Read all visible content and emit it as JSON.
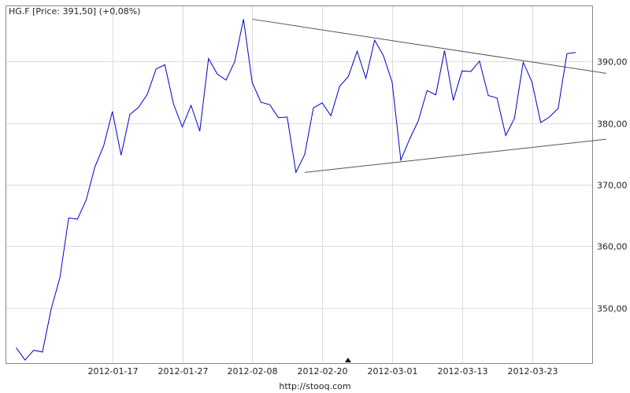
{
  "chart_data": {
    "type": "line",
    "title": "HG.F [Price: 391,50] (+0,08%)",
    "source": "http://stooq.com",
    "ylim": [
      341,
      399
    ],
    "y_ticks": [
      350,
      360,
      370,
      380,
      390
    ],
    "y_tick_labels": [
      "350,00",
      "360,00",
      "370,00",
      "380,00",
      "390,00"
    ],
    "x_tick_labels": [
      "2012-01-17",
      "2012-01-27",
      "2012-02-08",
      "2012-02-20",
      "2012-03-01",
      "2012-03-13",
      "2012-03-23"
    ],
    "x_tick_index": [
      11,
      19,
      27,
      35,
      43,
      51,
      59
    ],
    "grid": true,
    "series": [
      {
        "color": "#0000cc",
        "values": [
          343.5,
          341.5,
          343.1,
          342.8,
          349.8,
          354.9,
          364.6,
          364.4,
          367.5,
          372.9,
          376.3,
          381.9,
          374.8,
          381.4,
          382.6,
          384.7,
          388.8,
          389.5,
          383.1,
          379.4,
          382.9,
          378.7,
          390.5,
          388.0,
          387.0,
          390.0,
          396.9,
          386.6,
          383.4,
          383.0,
          380.9,
          381.0,
          372.0,
          374.9,
          382.5,
          383.3,
          381.2,
          386.0,
          387.6,
          391.7,
          387.3,
          393.5,
          391.0,
          386.7,
          374.0,
          377.4,
          380.4,
          385.3,
          384.6,
          391.8,
          383.7,
          388.5,
          388.4,
          390.1,
          384.5,
          384.1,
          378.0,
          380.8,
          389.9,
          386.7,
          380.1,
          381.0,
          382.4,
          391.3,
          391.5
        ]
      }
    ],
    "trendlines": [
      {
        "color": "#555555",
        "from": [
          27,
          396.9
        ],
        "to": [
          67.5,
          388.1
        ]
      },
      {
        "color": "#555555",
        "from": [
          33,
          372.0
        ],
        "to": [
          67.5,
          377.4
        ]
      }
    ]
  }
}
